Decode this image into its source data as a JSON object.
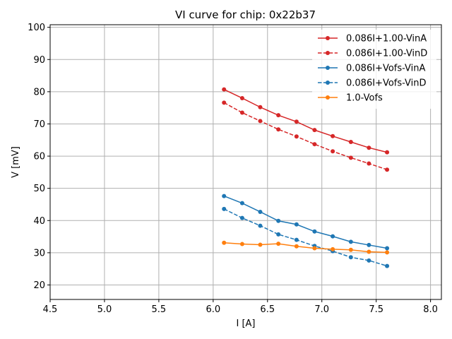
{
  "chart_data": {
    "type": "line",
    "title": "VI curve for chip: 0x22b37",
    "xlabel": "I [A]",
    "ylabel": "V [mV]",
    "xlim": [
      4.5,
      8.1
    ],
    "ylim": [
      15.5,
      100.8
    ],
    "xticks": [
      "4.5",
      "5.0",
      "5.5",
      "6.0",
      "6.5",
      "7.0",
      "7.5",
      "8.0"
    ],
    "yticks": [
      "20",
      "30",
      "40",
      "50",
      "60",
      "70",
      "80",
      "90",
      "100"
    ],
    "grid": true,
    "legend_position": "top-right",
    "x": [
      6.1,
      6.267,
      6.433,
      6.6,
      6.767,
      6.933,
      7.1,
      7.267,
      7.433,
      7.6
    ],
    "series": [
      {
        "name": "0.086I+1.00-VinA",
        "color": "#d62728",
        "dashed": false,
        "values": [
          80.7,
          78.0,
          75.2,
          72.7,
          70.7,
          68.1,
          66.2,
          64.4,
          62.6,
          61.2
        ]
      },
      {
        "name": "0.086I+1.00-VinD",
        "color": "#d62728",
        "dashed": true,
        "values": [
          76.6,
          73.5,
          70.9,
          68.3,
          66.1,
          63.7,
          61.5,
          59.5,
          57.7,
          55.8
        ]
      },
      {
        "name": "0.086I+Vofs-VinA",
        "color": "#1f77b4",
        "dashed": false,
        "values": [
          47.6,
          45.4,
          42.7,
          39.9,
          38.8,
          36.6,
          35.1,
          33.4,
          32.4,
          31.4
        ]
      },
      {
        "name": "0.086I+Vofs-VinD",
        "color": "#1f77b4",
        "dashed": true,
        "values": [
          43.6,
          40.8,
          38.4,
          35.7,
          34.0,
          32.1,
          30.5,
          28.6,
          27.6,
          25.9
        ]
      },
      {
        "name": "1.0-Vofs",
        "color": "#ff7f0e",
        "dashed": false,
        "values": [
          33.1,
          32.7,
          32.5,
          32.8,
          32.0,
          31.4,
          31.1,
          30.9,
          30.3,
          30.1
        ]
      }
    ]
  }
}
